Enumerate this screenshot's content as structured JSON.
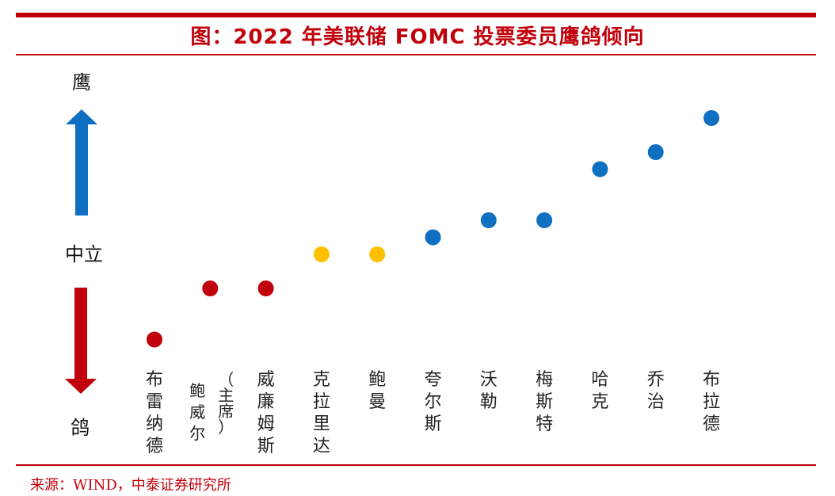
{
  "title": "图：2022 年美联储 FOMC 投票委员鹰鸽倾向",
  "source": "来源：WIND，中泰证券研究所",
  "colors": {
    "frame": "#c0000b",
    "hawk": "#0f6fc0",
    "dove": "#c0000b",
    "neutral": "#ffc000"
  },
  "chart_data": {
    "type": "scatter",
    "axis": {
      "top_label": "鹰",
      "middle_label": "中立",
      "bottom_label": "鸽",
      "ylim": [
        -3.5,
        5.5
      ]
    },
    "points": [
      {
        "name": "布雷纳德",
        "stance": "dove",
        "y": -2.5
      },
      {
        "name": "鲍威尔（主席）",
        "stance": "dove",
        "y": -1
      },
      {
        "name": "威廉姆斯",
        "stance": "dove",
        "y": -1
      },
      {
        "name": "克拉里达",
        "stance": "neutral",
        "y": 0
      },
      {
        "name": "鲍曼",
        "stance": "neutral",
        "y": 0
      },
      {
        "name": "夸尔斯",
        "stance": "hawk",
        "y": 0.5
      },
      {
        "name": "沃勒",
        "stance": "hawk",
        "y": 1
      },
      {
        "name": "梅斯特",
        "stance": "hawk",
        "y": 1
      },
      {
        "name": "哈克",
        "stance": "hawk",
        "y": 2.5
      },
      {
        "name": "乔治",
        "stance": "hawk",
        "y": 3
      },
      {
        "name": "布拉德",
        "stance": "hawk",
        "y": 4
      }
    ]
  }
}
